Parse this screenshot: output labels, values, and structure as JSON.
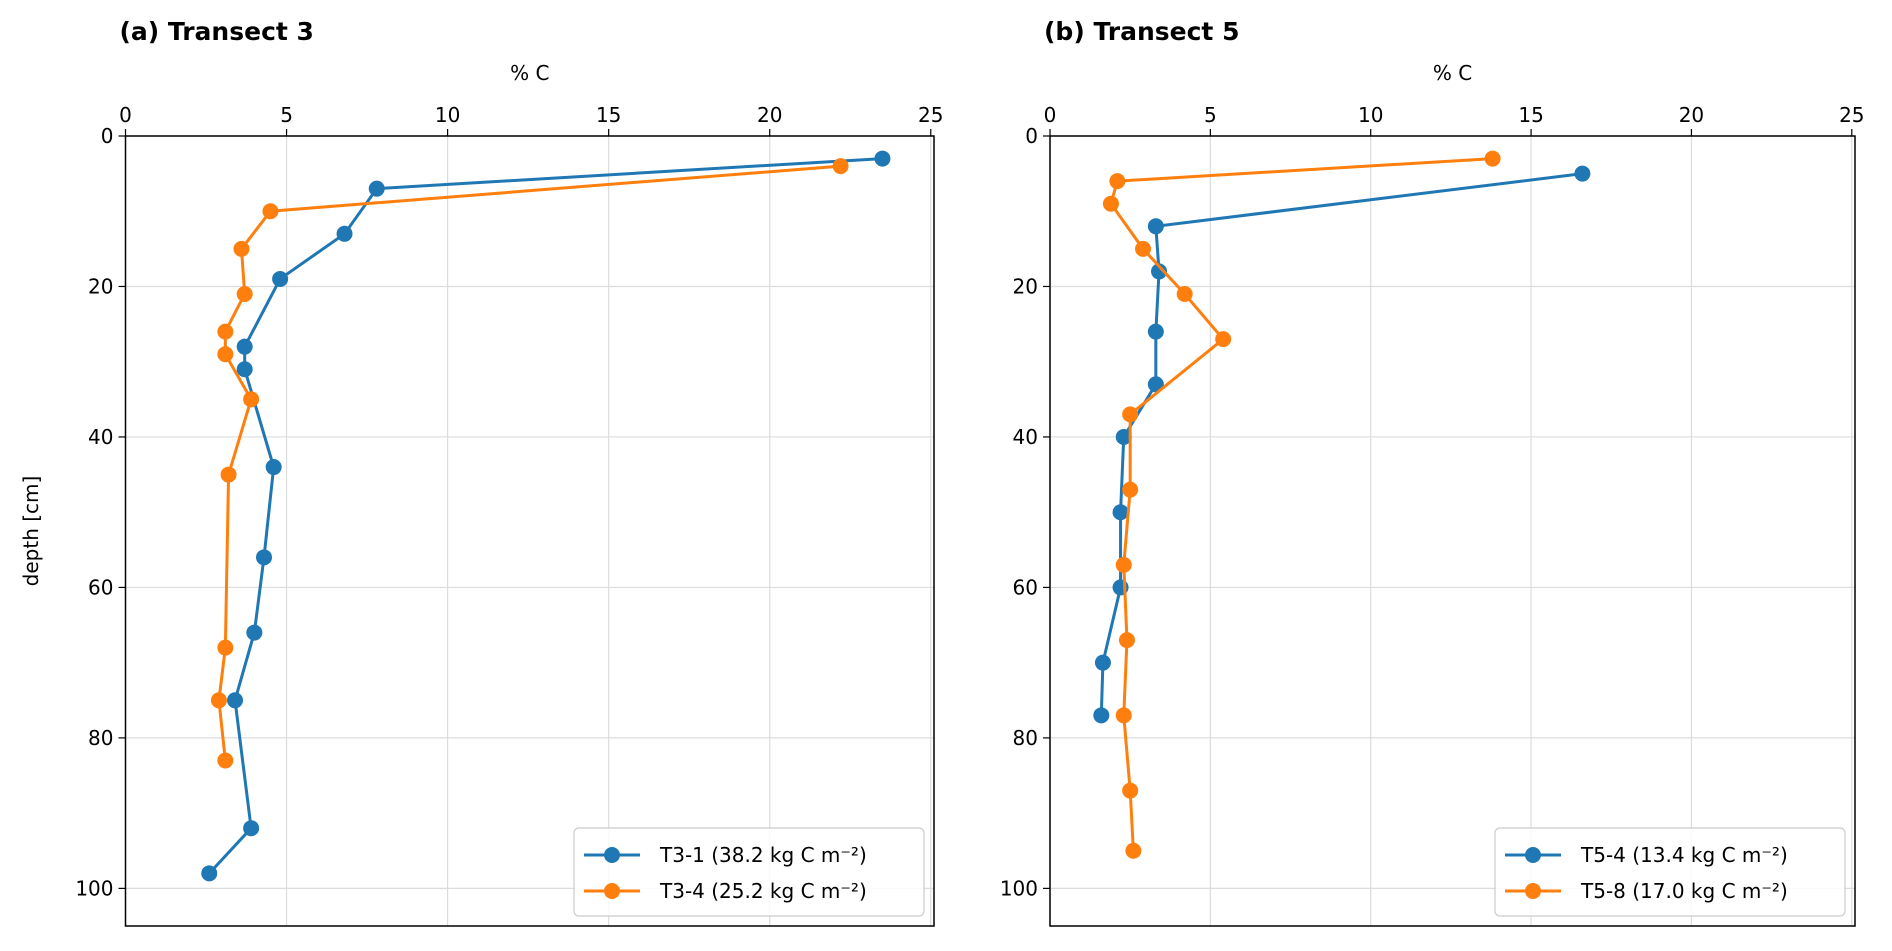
{
  "chart_data": [
    {
      "type": "line",
      "title": "(a) Transect 3",
      "xlabel": "% C",
      "ylabel": "depth [cm]",
      "xlim": [
        0,
        25.1
      ],
      "ylim": [
        105,
        0
      ],
      "xticks": [
        0,
        5,
        10,
        15,
        20,
        25
      ],
      "yticks": [
        0,
        20,
        40,
        60,
        80,
        100
      ],
      "grid": true,
      "legend_position": "bottom-right",
      "series": [
        {
          "name": "T3-1 (38.2 kg C m⁻²)",
          "color": "#1f77b4",
          "x": [
            23.5,
            7.8,
            6.8,
            4.8,
            3.7,
            3.7,
            4.6,
            4.3,
            4.0,
            3.4,
            3.9,
            2.6
          ],
          "y": [
            3,
            7,
            13,
            19,
            28,
            31,
            44,
            56,
            66,
            75,
            92,
            98
          ]
        },
        {
          "name": "T3-4 (25.2 kg C m⁻²)",
          "color": "#ff7f0e",
          "x": [
            22.2,
            4.5,
            3.6,
            3.7,
            3.1,
            3.1,
            3.9,
            3.2,
            3.1,
            2.9,
            3.1
          ],
          "y": [
            4,
            10,
            15,
            21,
            26,
            29,
            35,
            45,
            68,
            75,
            83
          ]
        }
      ]
    },
    {
      "type": "line",
      "title": "(b) Transect 5",
      "xlabel": "% C",
      "ylabel": "",
      "xlim": [
        0,
        25.1
      ],
      "ylim": [
        105,
        0
      ],
      "xticks": [
        0,
        5,
        10,
        15,
        20,
        25
      ],
      "yticks": [
        0,
        20,
        40,
        60,
        80,
        100
      ],
      "grid": true,
      "legend_position": "bottom-right",
      "series": [
        {
          "name": "T5-4 (13.4 kg C m⁻²)",
          "color": "#1f77b4",
          "x": [
            16.6,
            3.3,
            3.4,
            3.3,
            3.3,
            2.3,
            2.2,
            2.2,
            1.65,
            1.6
          ],
          "y": [
            5,
            12,
            18,
            26,
            33,
            40,
            50,
            60,
            70,
            77
          ]
        },
        {
          "name": "T5-8 (17.0 kg C m⁻²)",
          "color": "#ff7f0e",
          "x": [
            13.8,
            2.1,
            1.9,
            2.9,
            4.2,
            5.4,
            2.5,
            2.5,
            2.3,
            2.4,
            2.3,
            2.5,
            2.6
          ],
          "y": [
            3,
            6,
            9,
            15,
            21,
            27,
            37,
            47,
            57,
            67,
            77,
            87,
            95
          ]
        }
      ]
    }
  ]
}
